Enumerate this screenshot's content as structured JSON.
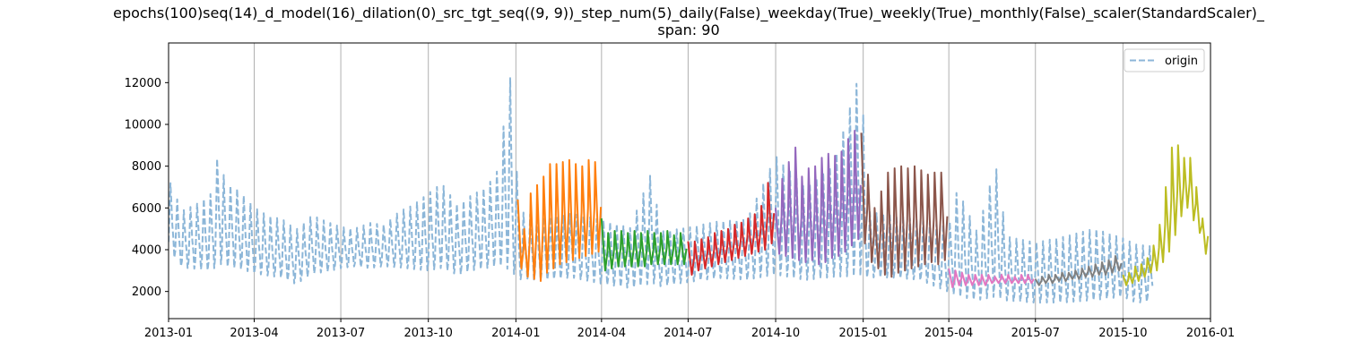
{
  "chart_data": {
    "type": "line",
    "title": "epochs(100)seq(14)_d_model(16)_dilation(0)_src_tgt_seq((9, 9))_step_num(5)_daily(False)_weekday(True)_weekly(True)_monthly(False)_scaler(StandardScaler)_",
    "subtitle": "span: 90",
    "xlabel": "",
    "ylabel": "",
    "x_range": [
      "2013-01-01",
      "2016-01-01"
    ],
    "ylim": [
      700,
      13900
    ],
    "x_ticks": [
      "2013-01",
      "2013-04",
      "2013-07",
      "2013-10",
      "2014-01",
      "2014-04",
      "2014-07",
      "2014-10",
      "2015-01",
      "2015-04",
      "2015-07",
      "2015-10",
      "2016-01"
    ],
    "y_ticks": [
      2000,
      4000,
      6000,
      8000,
      10000,
      12000
    ],
    "grid": "vertical lines at x ticks",
    "legend": {
      "placement": "top-right",
      "entries": [
        "origin"
      ]
    },
    "series": [
      {
        "name": "origin",
        "style": "dashed",
        "color": "#8cb6d8",
        "x": [
          "2013-01-01",
          "2013-01-15",
          "2013-02-01",
          "2013-02-15",
          "2013-02-24",
          "2013-03-01",
          "2013-03-15",
          "2013-04-01",
          "2013-04-15",
          "2013-05-01",
          "2013-05-15",
          "2013-06-01",
          "2013-06-15",
          "2013-07-01",
          "2013-07-15",
          "2013-08-01",
          "2013-08-15",
          "2013-09-01",
          "2013-09-15",
          "2013-10-01",
          "2013-10-15",
          "2013-11-01",
          "2013-11-15",
          "2013-12-01",
          "2013-12-15",
          "2013-12-25",
          "2014-01-05",
          "2014-02-01",
          "2014-03-01",
          "2014-04-01",
          "2014-05-01",
          "2014-05-25",
          "2014-06-01",
          "2014-07-01",
          "2014-08-01",
          "2014-09-01",
          "2014-10-01",
          "2014-11-01",
          "2014-12-01",
          "2014-12-30",
          "2015-01-05",
          "2015-02-01",
          "2015-03-01",
          "2015-04-01",
          "2015-04-10",
          "2015-05-01",
          "2015-05-20",
          "2015-06-01",
          "2015-07-01",
          "2015-08-01",
          "2015-09-01",
          "2015-10-01",
          "2015-10-15",
          "2015-11-01"
        ],
        "high": [
          7600,
          6000,
          6400,
          6900,
          9500,
          7400,
          7100,
          6200,
          5800,
          5600,
          5100,
          5800,
          5500,
          5200,
          5100,
          5400,
          5300,
          6000,
          6300,
          6900,
          7400,
          6300,
          6800,
          7200,
          8200,
          13400,
          6000,
          5700,
          5900,
          5600,
          5200,
          8200,
          5000,
          5200,
          5500,
          5600,
          8800,
          7200,
          8400,
          13300,
          6000,
          5800,
          5600,
          5300,
          7200,
          5000,
          8500,
          4800,
          4500,
          4800,
          5200,
          4700,
          4400,
          4300
        ],
        "low": [
          3800,
          3000,
          2900,
          2800,
          3000,
          3000,
          2900,
          2700,
          2600,
          2500,
          2200,
          2700,
          2800,
          3000,
          3100,
          3000,
          3100,
          3000,
          2900,
          2800,
          2900,
          2600,
          2800,
          2900,
          3000,
          2500,
          2400,
          2400,
          2500,
          2200,
          2000,
          2100,
          2100,
          2300,
          2500,
          2400,
          2500,
          2300,
          2400,
          2200,
          2500,
          2500,
          2400,
          1800,
          1500,
          1400,
          1400,
          1400,
          1300,
          1300,
          1400,
          1600,
          1300,
          1400
        ]
      },
      {
        "name": "",
        "color": "#ff7f0e",
        "start": "2014-01-03",
        "end": "2014-04-01",
        "peaks": [
          6400,
          5000,
          6700,
          7100,
          7500,
          8100,
          8100,
          8200,
          8300,
          8100,
          8000,
          8300,
          8200
        ],
        "troughs": [
          3100,
          2700,
          2600,
          2500,
          2900,
          3100,
          3300,
          3400,
          3500,
          3600,
          3700,
          3800,
          3900
        ]
      },
      {
        "name": "",
        "color": "#2ca02c",
        "start": "2014-04-01",
        "end": "2014-06-30",
        "peaks": [
          5500,
          4800,
          4900,
          4900,
          4800,
          4900,
          4800,
          4900,
          4800,
          4800,
          4900,
          4700,
          4800
        ],
        "troughs": [
          3000,
          3100,
          3200,
          3200,
          3200,
          3200,
          3200,
          3300,
          3300,
          3300,
          3300,
          3300,
          3300
        ]
      },
      {
        "name": "",
        "color": "#d62728",
        "start": "2014-07-01",
        "end": "2014-09-30",
        "peaks": [
          4400,
          4400,
          4500,
          4600,
          4800,
          4900,
          5000,
          5200,
          5300,
          5500,
          5700,
          6100,
          7200
        ],
        "troughs": [
          2800,
          3000,
          3100,
          3200,
          3300,
          3400,
          3500,
          3600,
          3700,
          3800,
          3900,
          4000,
          4300
        ]
      },
      {
        "name": "",
        "color": "#9467bd",
        "start": "2014-10-01",
        "end": "2014-12-30",
        "peaks": [
          6000,
          7400,
          8200,
          8900,
          7500,
          7900,
          8000,
          8400,
          8600,
          8500,
          8700,
          9300,
          9700
        ],
        "troughs": [
          3800,
          3700,
          3600,
          3500,
          3400,
          3500,
          3300,
          3400,
          3600,
          3700,
          3900,
          4200,
          4500
        ]
      },
      {
        "name": "",
        "color": "#8c564b",
        "start": "2014-12-30",
        "end": "2015-03-31",
        "peaks": [
          9600,
          7600,
          6000,
          6800,
          7700,
          7900,
          8000,
          7900,
          8000,
          7800,
          7600,
          7700,
          7700
        ],
        "troughs": [
          4300,
          3400,
          3100,
          2800,
          2700,
          2900,
          3000,
          3100,
          3200,
          3300,
          3400,
          3300,
          3500
        ]
      },
      {
        "name": "",
        "color": "#e377c2",
        "start": "2015-04-01",
        "end": "2015-06-30",
        "peaks": [
          3100,
          3000,
          2900,
          2800,
          2800,
          2800,
          2800,
          2700,
          2800,
          2800,
          2700,
          2800,
          2800
        ],
        "troughs": [
          2200,
          2300,
          2300,
          2300,
          2300,
          2300,
          2400,
          2400,
          2400,
          2400,
          2400,
          2400,
          2400
        ]
      },
      {
        "name": "",
        "color": "#7f7f7f",
        "start": "2015-07-01",
        "end": "2015-09-30",
        "peaks": [
          2600,
          2700,
          2800,
          2800,
          2900,
          2900,
          3000,
          3100,
          3200,
          3300,
          3400,
          3500,
          3700
        ],
        "troughs": [
          2300,
          2400,
          2400,
          2500,
          2500,
          2600,
          2600,
          2700,
          2700,
          2800,
          2800,
          2900,
          3000
        ]
      },
      {
        "name": "",
        "color": "#bcbd22",
        "start": "2015-10-01",
        "end": "2015-12-30",
        "peaks": [
          2800,
          2900,
          3200,
          3300,
          3600,
          4200,
          5200,
          7000,
          8900,
          9000,
          8400,
          8400,
          7000,
          5500
        ],
        "troughs": [
          2300,
          2400,
          2500,
          2700,
          2900,
          3000,
          3400,
          3900,
          4700,
          5600,
          6000,
          5400,
          4800,
          3800
        ]
      }
    ]
  }
}
